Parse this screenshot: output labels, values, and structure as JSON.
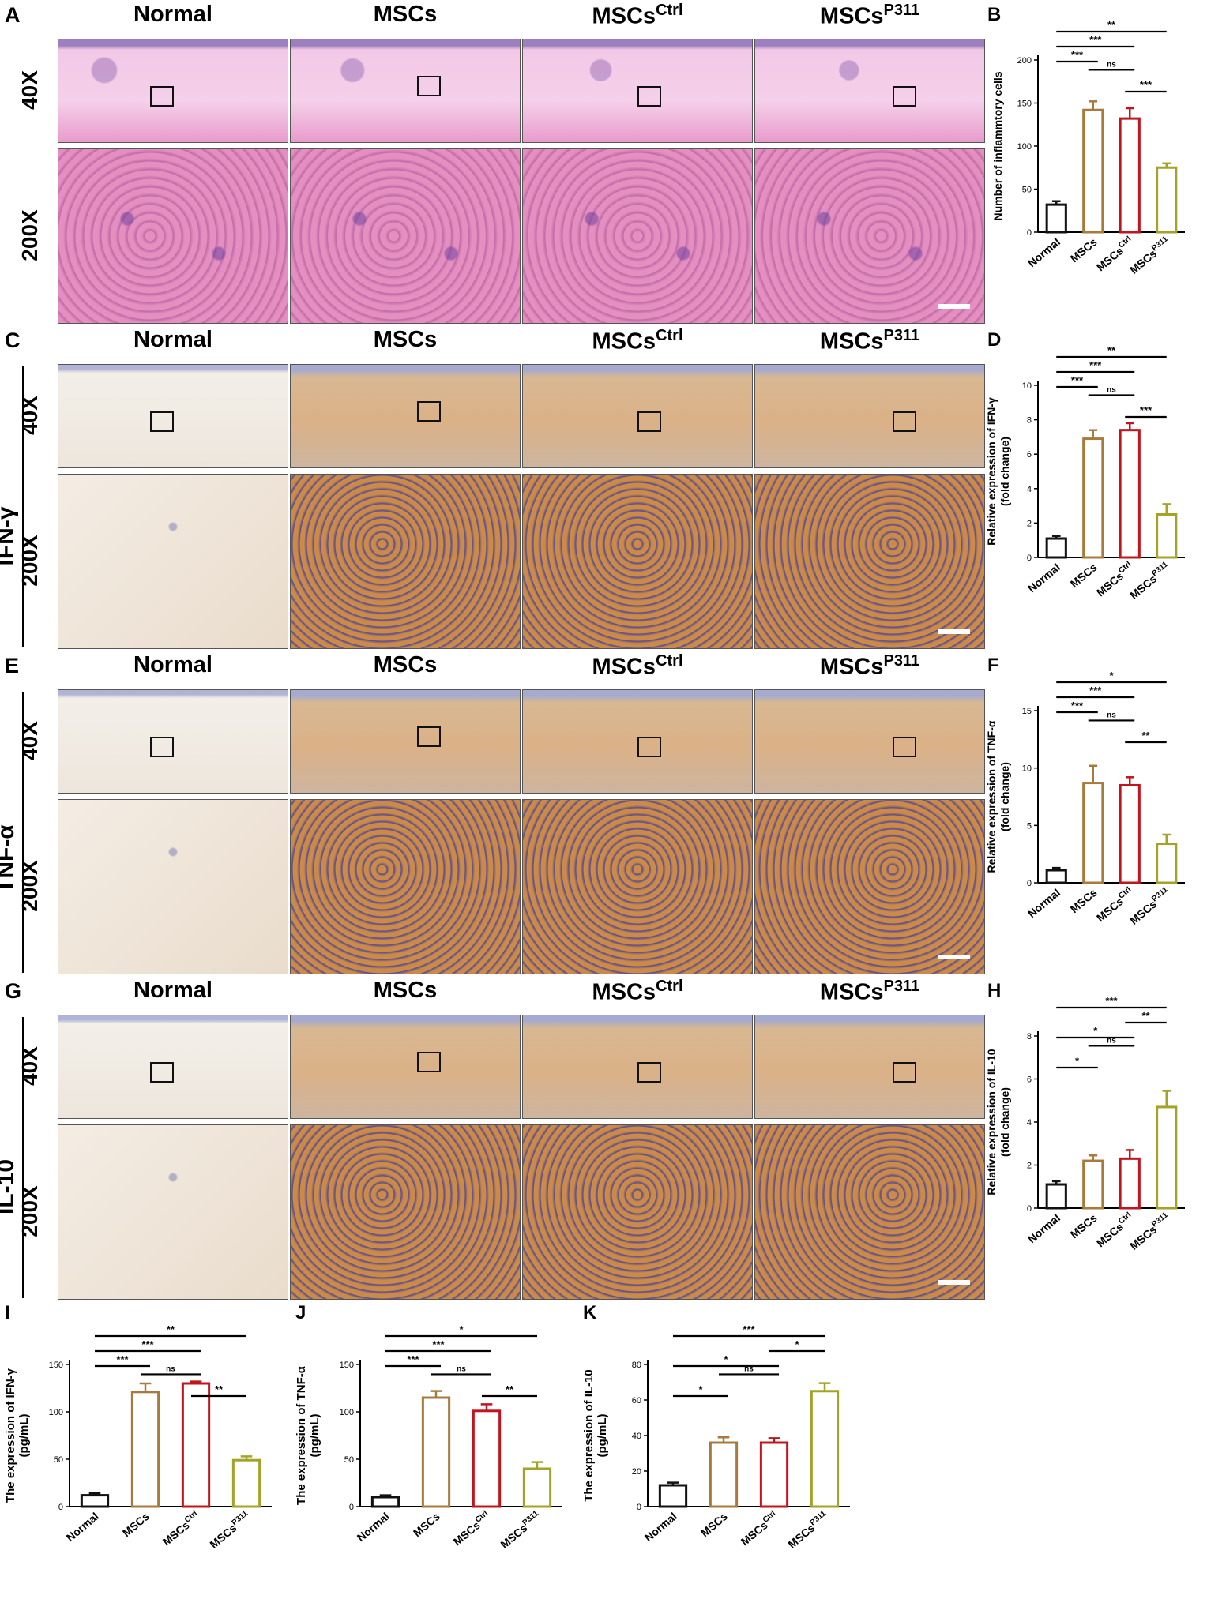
{
  "panels": {
    "column_headers": [
      "Normal",
      "MSCs",
      "MSCs",
      "MSCs"
    ],
    "column_header_sups": [
      "",
      "",
      "Ctrl",
      "P311"
    ],
    "magnifications": [
      "40X",
      "200X"
    ],
    "stain_rows": [
      {
        "letter": "A",
        "stain_label": "",
        "style": "he"
      },
      {
        "letter": "C",
        "stain_label": "IFN-γ",
        "style": "ihc"
      },
      {
        "letter": "E",
        "stain_label": "TNF-α",
        "style": "ihc"
      },
      {
        "letter": "G",
        "stain_label": "IL-10",
        "style": "ihc"
      }
    ]
  },
  "colors": {
    "Normal": "#111111",
    "MSCs": "#a87a3c",
    "MSCsCtrl": "#c0141e",
    "MSCsP311": "#a3a329",
    "he_pink": "#e48fc0",
    "he_purple": "#6b3f9e",
    "ihc_brown": "#c98a4b",
    "ihc_blue": "#6a70b0"
  },
  "chart_data": [
    {
      "panel": "B",
      "type": "bar",
      "categories": [
        "Normal",
        "MSCs",
        "MSCs Ctrl",
        "MSCs P311"
      ],
      "values": [
        32,
        142,
        132,
        75
      ],
      "errors": [
        4,
        10,
        12,
        5
      ],
      "ylabel": "Number of inflammtory cells",
      "ylim": [
        0,
        200
      ],
      "yticks": [
        0,
        50,
        100,
        150,
        200
      ],
      "sig": [
        {
          "a": 0,
          "b": 3,
          "label": "**"
        },
        {
          "a": 0,
          "b": 2,
          "label": "***"
        },
        {
          "a": 0,
          "b": 1,
          "label": "***"
        },
        {
          "a": 1,
          "b": 2,
          "label": "ns"
        },
        {
          "a": 2,
          "b": 3,
          "label": "***"
        }
      ]
    },
    {
      "panel": "D",
      "type": "bar",
      "categories": [
        "Normal",
        "MSCs",
        "MSCs Ctrl",
        "MSCs P311"
      ],
      "values": [
        1.1,
        6.9,
        7.4,
        2.5
      ],
      "errors": [
        0.15,
        0.5,
        0.4,
        0.6
      ],
      "ylabel": "Relative expression of IFN-γ (fold change)",
      "ylim": [
        0,
        10
      ],
      "yticks": [
        0,
        2,
        4,
        6,
        8,
        10
      ],
      "sig": [
        {
          "a": 0,
          "b": 3,
          "label": "**"
        },
        {
          "a": 0,
          "b": 2,
          "label": "***"
        },
        {
          "a": 0,
          "b": 1,
          "label": "***"
        },
        {
          "a": 1,
          "b": 2,
          "label": "ns"
        },
        {
          "a": 2,
          "b": 3,
          "label": "***"
        }
      ]
    },
    {
      "panel": "F",
      "type": "bar",
      "categories": [
        "Normal",
        "MSCs",
        "MSCs Ctrl",
        "MSCs P311"
      ],
      "values": [
        1.1,
        8.7,
        8.5,
        3.4
      ],
      "errors": [
        0.2,
        1.5,
        0.7,
        0.8
      ],
      "ylabel": "Relative expression of TNF-α (fold change)",
      "ylim": [
        0,
        15
      ],
      "yticks": [
        0,
        5,
        10,
        15
      ],
      "sig": [
        {
          "a": 0,
          "b": 3,
          "label": "*"
        },
        {
          "a": 0,
          "b": 2,
          "label": "***"
        },
        {
          "a": 0,
          "b": 1,
          "label": "***"
        },
        {
          "a": 1,
          "b": 2,
          "label": "ns"
        },
        {
          "a": 2,
          "b": 3,
          "label": "**"
        }
      ]
    },
    {
      "panel": "H",
      "type": "bar",
      "categories": [
        "Normal",
        "MSCs",
        "MSCs Ctrl",
        "MSCs P311"
      ],
      "values": [
        1.1,
        2.2,
        2.3,
        4.7
      ],
      "errors": [
        0.15,
        0.25,
        0.4,
        0.75
      ],
      "ylabel": "Relative expression of IL-10 (fold change)",
      "ylim": [
        0,
        8
      ],
      "yticks": [
        0,
        2,
        4,
        6,
        8
      ],
      "sig": [
        {
          "a": 0,
          "b": 3,
          "label": "***"
        },
        {
          "a": 2,
          "b": 3,
          "label": "**"
        },
        {
          "a": 0,
          "b": 2,
          "label": "*"
        },
        {
          "a": 1,
          "b": 2,
          "label": "ns"
        },
        {
          "a": 0,
          "b": 1,
          "label": "*"
        }
      ]
    },
    {
      "panel": "I",
      "type": "bar",
      "categories": [
        "Normal",
        "MSCs",
        "MSCs Ctrl",
        "MSCs P311"
      ],
      "values": [
        12,
        121,
        130,
        49
      ],
      "errors": [
        2,
        9,
        2,
        4
      ],
      "ylabel": "The expression of IFN-γ (pg/mL)",
      "ylim": [
        0,
        150
      ],
      "yticks": [
        0,
        50,
        100,
        150
      ],
      "sig": [
        {
          "a": 0,
          "b": 3,
          "label": "**"
        },
        {
          "a": 0,
          "b": 2,
          "label": "***"
        },
        {
          "a": 0,
          "b": 1,
          "label": "***"
        },
        {
          "a": 1,
          "b": 2,
          "label": "ns"
        },
        {
          "a": 2,
          "b": 3,
          "label": "**"
        }
      ]
    },
    {
      "panel": "J",
      "type": "bar",
      "categories": [
        "Normal",
        "MSCs",
        "MSCs Ctrl",
        "MSCs P311"
      ],
      "values": [
        10,
        115,
        101,
        40
      ],
      "errors": [
        2,
        7,
        7,
        7
      ],
      "ylabel": "The expression of TNF-α (pg/mL)",
      "ylim": [
        0,
        150
      ],
      "yticks": [
        0,
        50,
        100,
        150
      ],
      "sig": [
        {
          "a": 0,
          "b": 3,
          "label": "*"
        },
        {
          "a": 0,
          "b": 2,
          "label": "***"
        },
        {
          "a": 0,
          "b": 1,
          "label": "***"
        },
        {
          "a": 1,
          "b": 2,
          "label": "ns"
        },
        {
          "a": 2,
          "b": 3,
          "label": "**"
        }
      ]
    },
    {
      "panel": "K",
      "type": "bar",
      "categories": [
        "Normal",
        "MSCs",
        "MSCs Ctrl",
        "MSCs P311"
      ],
      "values": [
        12,
        36,
        36,
        65
      ],
      "errors": [
        1.5,
        3,
        2.5,
        4.5
      ],
      "ylabel": "The expression of IL-10 (pg/mL)",
      "ylim": [
        0,
        80
      ],
      "yticks": [
        0,
        20,
        40,
        60,
        80
      ],
      "sig": [
        {
          "a": 0,
          "b": 3,
          "label": "***"
        },
        {
          "a": 2,
          "b": 3,
          "label": "*"
        },
        {
          "a": 0,
          "b": 2,
          "label": "*"
        },
        {
          "a": 1,
          "b": 2,
          "label": "ns"
        },
        {
          "a": 0,
          "b": 1,
          "label": "*"
        }
      ]
    }
  ]
}
